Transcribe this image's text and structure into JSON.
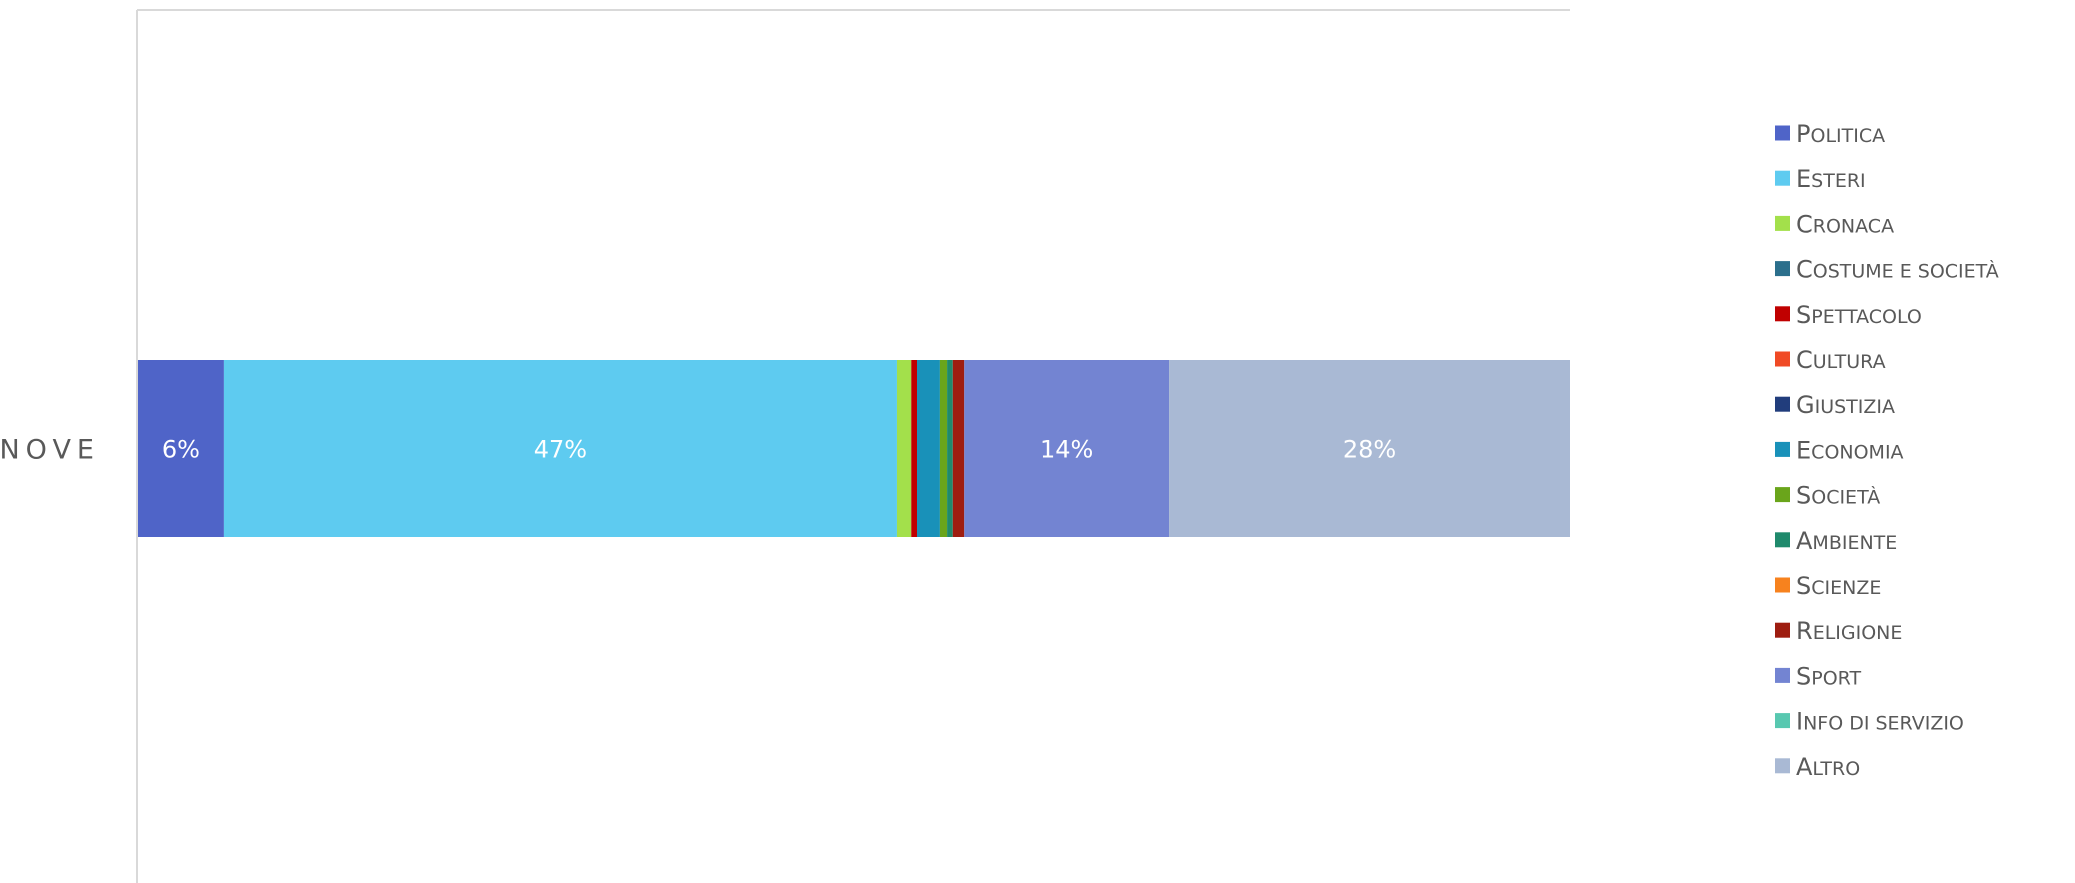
{
  "chart_data": {
    "type": "bar",
    "orientation": "horizontal",
    "stacked": "percent",
    "categories": [
      "NOVE"
    ],
    "xlim": [
      0,
      100
    ],
    "grid": false,
    "legend_position": "right",
    "series": [
      {
        "name": "Politica",
        "values": [
          6
        ],
        "label": "6%",
        "color": "#4f64c8"
      },
      {
        "name": "Esteri",
        "values": [
          47
        ],
        "label": "47%",
        "color": "#5ecbf0"
      },
      {
        "name": "Cronaca",
        "values": [
          1
        ],
        "label": "",
        "color": "#a3e04b"
      },
      {
        "name": "Costume e società",
        "values": [
          0
        ],
        "label": "",
        "color": "#2b6f8c"
      },
      {
        "name": "Spettacolo",
        "values": [
          0.4
        ],
        "label": "",
        "color": "#c00000"
      },
      {
        "name": "Cultura",
        "values": [
          0
        ],
        "label": "",
        "color": "#f04a25"
      },
      {
        "name": "Giustizia",
        "values": [
          0
        ],
        "label": "",
        "color": "#213d7c"
      },
      {
        "name": "Economia",
        "values": [
          1.6
        ],
        "label": "",
        "color": "#1991b9"
      },
      {
        "name": "Società",
        "values": [
          0.5
        ],
        "label": "",
        "color": "#6aa51b"
      },
      {
        "name": "Ambiente",
        "values": [
          0.4
        ],
        "label": "",
        "color": "#1f8a6c"
      },
      {
        "name": "Scienze",
        "values": [
          0
        ],
        "label": "",
        "color": "#f7821e"
      },
      {
        "name": "Religione",
        "values": [
          0.8
        ],
        "label": "",
        "color": "#9e1d10"
      },
      {
        "name": "Sport",
        "values": [
          14.3
        ],
        "label": "14%",
        "color": "#7384d2"
      },
      {
        "name": "Info di servizio",
        "values": [
          0
        ],
        "label": "",
        "color": "#58c8b0"
      },
      {
        "name": "Altro",
        "values": [
          28
        ],
        "label": "28%",
        "color": "#a9b9d4"
      }
    ]
  }
}
